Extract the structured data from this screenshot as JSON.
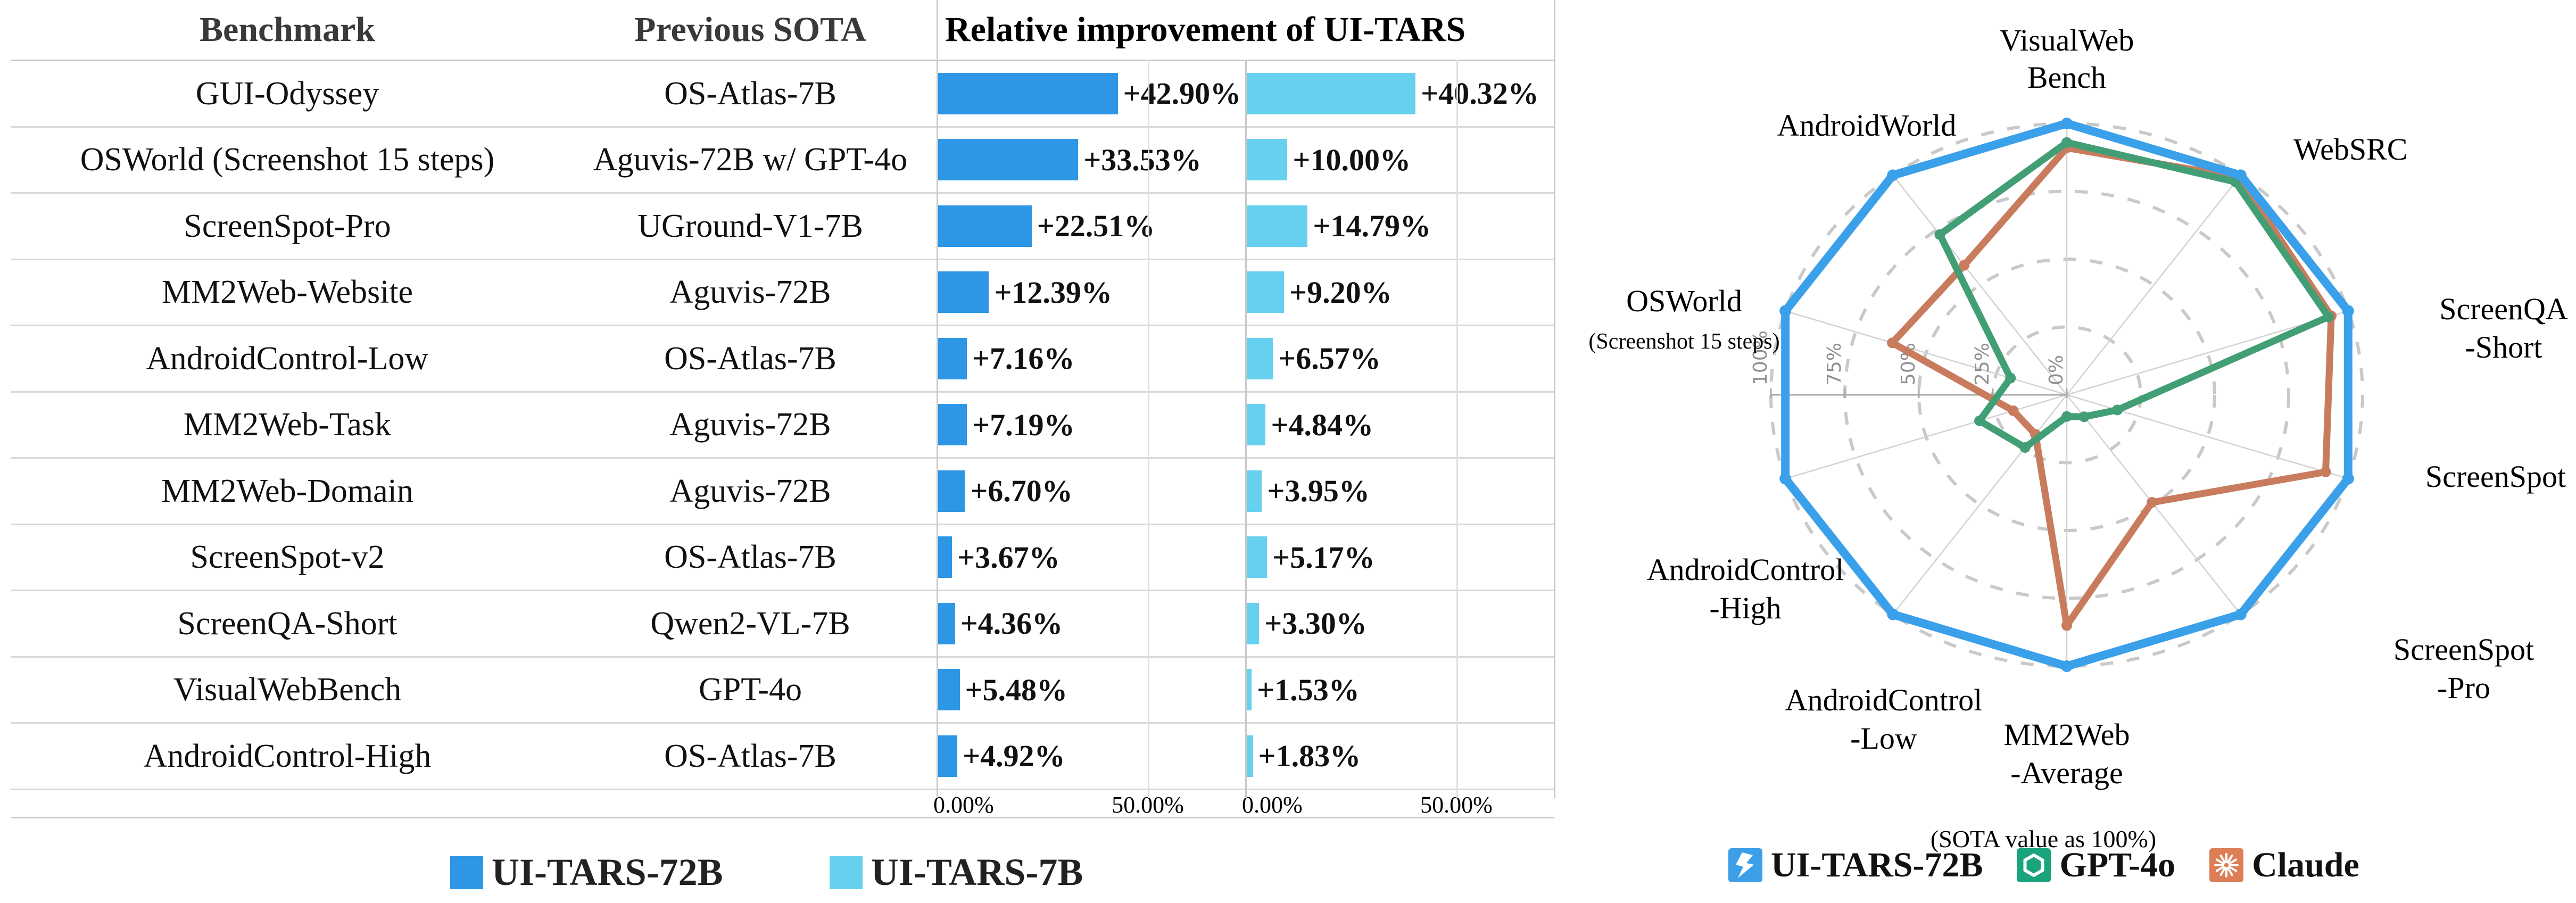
{
  "table": {
    "header": {
      "benchmark": "Benchmark",
      "previous_sota": "Previous SOTA",
      "improvement_title": "Relative improvement of UI-TARS"
    }
  },
  "radar_ui": {
    "caption": "(SOTA value as 100%)"
  },
  "colors": {
    "bar_72b": "#2E97E5",
    "bar_7b": "#67D0EF",
    "radar_blue": "#3BA0EA",
    "radar_green": "#429E75",
    "radar_orange": "#C87C5D",
    "legend_blue": "#3D9FE8",
    "legend_green": "#1AA47E",
    "legend_orange": "#DD7E57",
    "grid_gray": "#c9c9c9"
  },
  "chart_data": [
    {
      "type": "bar",
      "title": "Relative improvement of UI-TARS",
      "col_headers": [
        "Benchmark",
        "Previous SOTA"
      ],
      "categories": [
        "GUI-Odyssey",
        "OSWorld (Screenshot 15 steps)",
        "ScreenSpot-Pro",
        "MM2Web-Website",
        "AndroidControl-Low",
        "MM2Web-Task",
        "MM2Web-Domain",
        "ScreenSpot-v2",
        "ScreenQA-Short",
        "VisualWebBench",
        "AndroidControl-High"
      ],
      "previous_sota": [
        "OS-Atlas-7B",
        "Aguvis-72B w/ GPT-4o",
        "UGround-V1-7B",
        "Aguvis-72B",
        "OS-Atlas-7B",
        "Aguvis-72B",
        "Aguvis-72B",
        "OS-Atlas-7B",
        "Qwen2-VL-7B",
        "GPT-4o",
        "OS-Atlas-7B"
      ],
      "series": [
        {
          "name": "UI-TARS-72B",
          "color": "#2E97E5",
          "values": [
            42.9,
            33.53,
            22.51,
            12.39,
            7.16,
            7.19,
            6.7,
            3.67,
            4.36,
            5.48,
            4.92
          ],
          "labels": [
            "+42.90%",
            "+33.53%",
            "+22.51%",
            "+12.39%",
            "+7.16%",
            "+7.19%",
            "+6.70%",
            "+3.67%",
            "+4.36%",
            "+5.48%",
            "+4.92%"
          ]
        },
        {
          "name": "UI-TARS-7B",
          "color": "#67D0EF",
          "values": [
            40.32,
            10.0,
            14.79,
            9.2,
            6.57,
            4.84,
            3.95,
            5.17,
            3.3,
            1.53,
            1.83
          ],
          "labels": [
            "+40.32%",
            "+10.00%",
            "+14.79%",
            "+9.20%",
            "+6.57%",
            "+4.84%",
            "+3.95%",
            "+5.17%",
            "+3.30%",
            "+1.53%",
            "+1.83%"
          ]
        }
      ],
      "x_ticks": [
        "0.00%",
        "50.00%"
      ],
      "xlim": [
        0,
        73
      ],
      "grid": "vertical gridline at 50%"
    },
    {
      "type": "radar",
      "caption": "(SOTA value as 100%)",
      "r_ticks": [
        "0%",
        "25%",
        "50%",
        "75%",
        "100%"
      ],
      "rlim": [
        0,
        100
      ],
      "categories": [
        "VisualWebBench",
        "WebSRC",
        "ScreenQA-Short",
        "ScreenSpot",
        "ScreenSpot-Pro",
        "MM2Web-Average",
        "AndroidControl-Low",
        "AndroidControl-High",
        "OSWorld (Screenshot 15 steps)",
        "AndroidWorld"
      ],
      "category_label_lines": [
        [
          "VisualWeb",
          "Bench"
        ],
        [
          "WebSRC"
        ],
        [
          "ScreenQA",
          "-Short"
        ],
        [
          "ScreenSpot"
        ],
        [
          "ScreenSpot",
          "-Pro"
        ],
        [
          "MM2Web",
          "-Average"
        ],
        [
          "AndroidControl",
          "-Low"
        ],
        [
          "AndroidControl",
          "-High"
        ],
        [
          "OSWorld",
          "(Screenshot 15 steps)"
        ],
        [
          "AndroidWorld"
        ]
      ],
      "series": [
        {
          "name": "UI-TARS-72B",
          "color": "#3BA0EA",
          "legend_color": "#3D9FE8",
          "values": [
            100,
            100,
            100,
            100,
            100,
            100,
            100,
            100,
            100,
            100
          ]
        },
        {
          "name": "GPT-4o",
          "color": "#429E75",
          "legend_color": "#1AA47E",
          "values": [
            93,
            97,
            93,
            18,
            10,
            8,
            24,
            31,
            20,
            73
          ]
        },
        {
          "name": "Claude",
          "color": "#C87C5D",
          "legend_color": "#DD7E57",
          "values": [
            91,
            99,
            94,
            92,
            49,
            85,
            18,
            19,
            62,
            59
          ]
        }
      ]
    }
  ]
}
